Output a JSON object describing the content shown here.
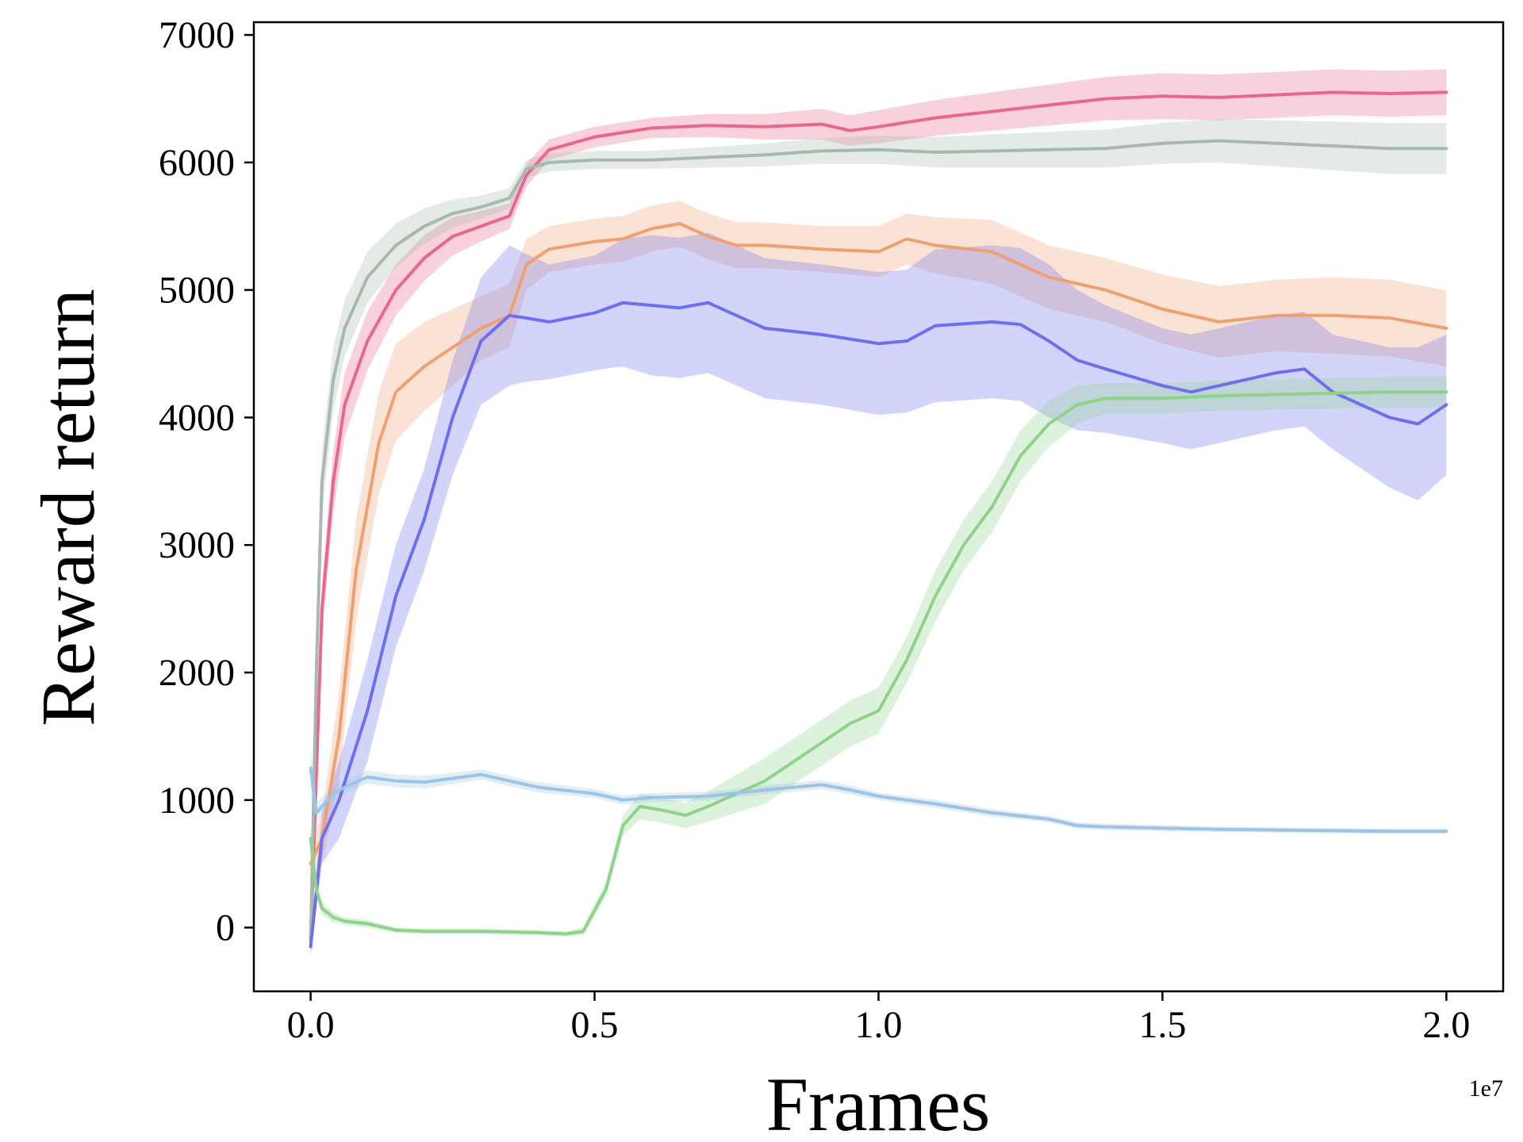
{
  "chart_data": {
    "type": "line",
    "title": "",
    "xlabel": "Frames",
    "ylabel": "Reward return",
    "x_offset_label": "1e7",
    "xlim": [
      -0.1,
      2.1
    ],
    "ylim": [
      -500,
      7100
    ],
    "xticks": [
      0.0,
      0.5,
      1.0,
      1.5,
      2.0
    ],
    "xtick_labels": [
      "0.0",
      "0.5",
      "1.0",
      "1.5",
      "2.0"
    ],
    "yticks": [
      0,
      1000,
      2000,
      3000,
      4000,
      5000,
      6000,
      7000
    ],
    "ytick_labels": [
      "0",
      "1000",
      "2000",
      "3000",
      "4000",
      "5000",
      "6000",
      "7000"
    ],
    "grid": false,
    "legend": "none",
    "series": [
      {
        "name": "pink",
        "color": "#e8678f",
        "x": [
          0.0,
          0.01,
          0.02,
          0.04,
          0.06,
          0.1,
          0.15,
          0.2,
          0.25,
          0.3,
          0.35,
          0.38,
          0.42,
          0.5,
          0.6,
          0.7,
          0.8,
          0.9,
          0.95,
          1.0,
          1.1,
          1.2,
          1.3,
          1.4,
          1.5,
          1.6,
          1.7,
          1.8,
          1.9,
          2.0
        ],
        "values": [
          -100,
          1200,
          2500,
          3500,
          4100,
          4600,
          5000,
          5250,
          5420,
          5500,
          5580,
          5900,
          6100,
          6200,
          6270,
          6290,
          6280,
          6300,
          6250,
          6280,
          6350,
          6400,
          6450,
          6500,
          6520,
          6510,
          6530,
          6550,
          6540,
          6550
        ],
        "band": [
          60,
          100,
          200,
          250,
          250,
          230,
          200,
          180,
          150,
          120,
          100,
          90,
          80,
          80,
          80,
          90,
          100,
          120,
          120,
          130,
          140,
          150,
          160,
          170,
          180,
          180,
          180,
          180,
          180,
          180
        ]
      },
      {
        "name": "gray",
        "color": "#a7b9ad",
        "x": [
          0.0,
          0.01,
          0.02,
          0.04,
          0.06,
          0.1,
          0.15,
          0.2,
          0.25,
          0.3,
          0.35,
          0.38,
          0.42,
          0.5,
          0.6,
          0.7,
          0.8,
          0.9,
          1.0,
          1.1,
          1.2,
          1.3,
          1.4,
          1.5,
          1.6,
          1.7,
          1.8,
          1.9,
          2.0
        ],
        "values": [
          -100,
          2000,
          3500,
          4300,
          4700,
          5100,
          5350,
          5500,
          5600,
          5650,
          5720,
          5950,
          6000,
          6020,
          6020,
          6040,
          6060,
          6090,
          6100,
          6080,
          6090,
          6100,
          6110,
          6150,
          6170,
          6150,
          6130,
          6110,
          6110
        ],
        "band": [
          60,
          150,
          250,
          250,
          220,
          200,
          170,
          140,
          110,
          90,
          80,
          70,
          70,
          70,
          70,
          80,
          90,
          100,
          110,
          120,
          130,
          140,
          150,
          160,
          170,
          180,
          190,
          200,
          200
        ]
      },
      {
        "name": "orange",
        "color": "#f0a070",
        "x": [
          0.0,
          0.02,
          0.05,
          0.08,
          0.12,
          0.15,
          0.2,
          0.25,
          0.3,
          0.35,
          0.38,
          0.42,
          0.5,
          0.55,
          0.6,
          0.65,
          0.7,
          0.75,
          0.8,
          0.9,
          1.0,
          1.05,
          1.1,
          1.2,
          1.3,
          1.4,
          1.5,
          1.6,
          1.7,
          1.8,
          1.9,
          2.0
        ],
        "values": [
          500,
          700,
          1500,
          2800,
          3800,
          4200,
          4400,
          4550,
          4700,
          4800,
          5200,
          5320,
          5380,
          5400,
          5480,
          5520,
          5420,
          5350,
          5350,
          5320,
          5300,
          5400,
          5350,
          5300,
          5100,
          5000,
          4850,
          4750,
          4800,
          4800,
          4780,
          4700
        ],
        "band": [
          150,
          200,
          350,
          400,
          400,
          380,
          350,
          300,
          250,
          250,
          200,
          180,
          180,
          180,
          180,
          180,
          180,
          180,
          180,
          180,
          200,
          200,
          220,
          250,
          250,
          250,
          270,
          280,
          280,
          300,
          300,
          300
        ]
      },
      {
        "name": "blue",
        "color": "#6d6ff0",
        "x": [
          0.0,
          0.02,
          0.05,
          0.1,
          0.15,
          0.2,
          0.25,
          0.3,
          0.35,
          0.38,
          0.42,
          0.5,
          0.55,
          0.6,
          0.65,
          0.7,
          0.75,
          0.8,
          0.9,
          1.0,
          1.05,
          1.1,
          1.2,
          1.25,
          1.3,
          1.35,
          1.4,
          1.5,
          1.55,
          1.6,
          1.7,
          1.75,
          1.8,
          1.85,
          1.9,
          1.95,
          2.0
        ],
        "values": [
          -150,
          700,
          1000,
          1700,
          2600,
          3200,
          4000,
          4600,
          4800,
          4780,
          4750,
          4820,
          4900,
          4880,
          4860,
          4900,
          4800,
          4700,
          4650,
          4580,
          4600,
          4720,
          4750,
          4730,
          4600,
          4450,
          4380,
          4250,
          4200,
          4250,
          4350,
          4380,
          4200,
          4100,
          4000,
          3950,
          4100
        ],
        "band": [
          80,
          200,
          300,
          400,
          400,
          400,
          450,
          500,
          550,
          500,
          450,
          450,
          500,
          550,
          550,
          550,
          550,
          550,
          550,
          560,
          560,
          600,
          600,
          600,
          600,
          550,
          500,
          450,
          450,
          450,
          450,
          450,
          450,
          500,
          550,
          600,
          550
        ]
      },
      {
        "name": "green",
        "color": "#8fd38a",
        "x": [
          0.0,
          0.01,
          0.02,
          0.04,
          0.06,
          0.1,
          0.15,
          0.2,
          0.3,
          0.4,
          0.45,
          0.48,
          0.52,
          0.55,
          0.58,
          0.62,
          0.66,
          0.7,
          0.75,
          0.8,
          0.85,
          0.9,
          0.95,
          1.0,
          1.05,
          1.1,
          1.15,
          1.2,
          1.25,
          1.3,
          1.35,
          1.4,
          1.5,
          1.6,
          1.7,
          1.8,
          1.9,
          2.0
        ],
        "values": [
          700,
          300,
          150,
          80,
          50,
          30,
          -20,
          -30,
          -30,
          -40,
          -50,
          -30,
          300,
          800,
          950,
          920,
          880,
          950,
          1050,
          1150,
          1300,
          1450,
          1600,
          1700,
          2100,
          2600,
          3000,
          3300,
          3700,
          3950,
          4100,
          4150,
          4150,
          4170,
          4180,
          4190,
          4200,
          4200
        ],
        "band": [
          60,
          60,
          50,
          40,
          30,
          30,
          20,
          20,
          20,
          20,
          20,
          30,
          60,
          80,
          100,
          100,
          100,
          120,
          150,
          180,
          180,
          180,
          180,
          180,
          180,
          200,
          200,
          200,
          200,
          180,
          150,
          120,
          120,
          120,
          120,
          120,
          120,
          120
        ]
      },
      {
        "name": "light-blue",
        "color": "#9bc4e6",
        "x": [
          0.0,
          0.01,
          0.02,
          0.04,
          0.06,
          0.1,
          0.15,
          0.2,
          0.25,
          0.3,
          0.35,
          0.4,
          0.5,
          0.55,
          0.6,
          0.7,
          0.8,
          0.85,
          0.9,
          0.95,
          1.0,
          1.1,
          1.2,
          1.3,
          1.35,
          1.4,
          1.5,
          1.6,
          1.7,
          1.8,
          1.9,
          2.0
        ],
        "values": [
          1250,
          900,
          950,
          1050,
          1100,
          1180,
          1150,
          1140,
          1170,
          1200,
          1150,
          1100,
          1050,
          1000,
          1020,
          1030,
          1080,
          1100,
          1120,
          1080,
          1030,
          970,
          900,
          850,
          800,
          790,
          780,
          770,
          765,
          760,
          755,
          755
        ],
        "band": [
          150,
          80,
          70,
          60,
          50,
          50,
          50,
          50,
          45,
          40,
          40,
          40,
          35,
          35,
          35,
          35,
          35,
          35,
          35,
          35,
          30,
          30,
          30,
          25,
          25,
          25,
          25,
          20,
          20,
          20,
          20,
          20
        ]
      }
    ]
  }
}
